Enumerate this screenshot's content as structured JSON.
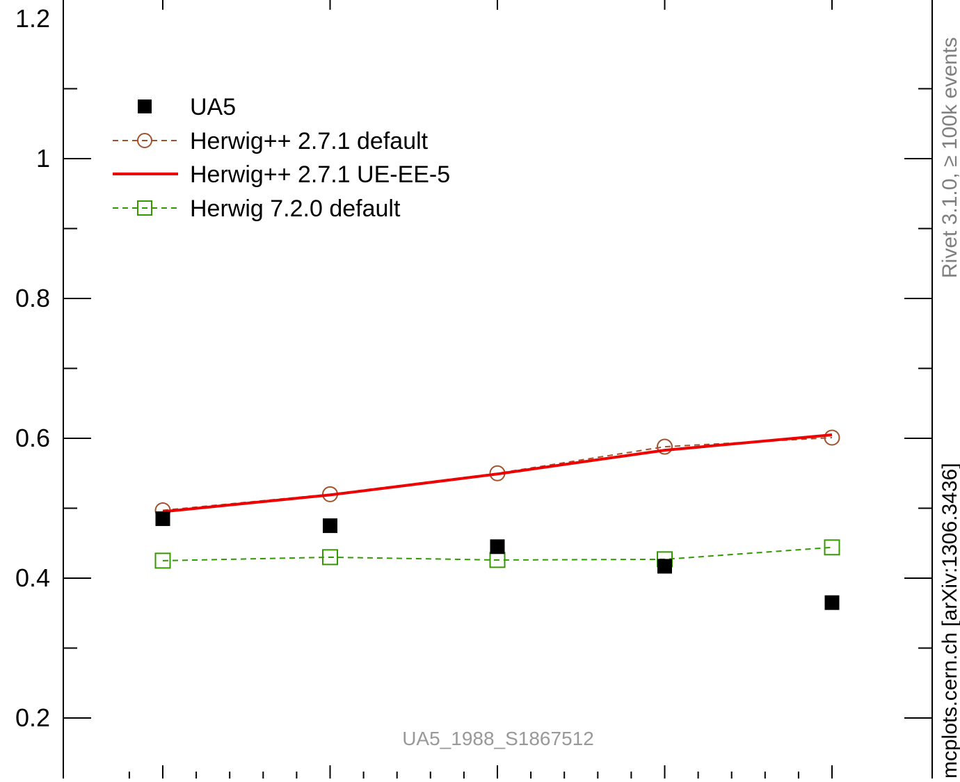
{
  "chart_data": {
    "type": "scatter",
    "title": "",
    "xlabel": "",
    "ylabel": "",
    "ylim": [
      0.1,
      1.22
    ],
    "y_ticks": [
      "0.2",
      "0.4",
      "0.6",
      "0.8",
      "1",
      "1.2"
    ],
    "series": [
      {
        "name": "UA5",
        "style": "markers",
        "marker": "filled-square",
        "color": "#000000",
        "x": [
          1,
          2,
          3,
          4,
          5
        ],
        "values": [
          0.485,
          0.475,
          0.445,
          0.417,
          0.365
        ]
      },
      {
        "name": "Herwig++ 2.7.1 default",
        "style": "dashed-line",
        "marker": "open-circle",
        "color": "#a0522d",
        "x": [
          1,
          2,
          3,
          4,
          5
        ],
        "values": [
          0.497,
          0.52,
          0.55,
          0.588,
          0.601
        ]
      },
      {
        "name": "Herwig++ 2.7.1 UE-EE-5",
        "style": "solid-line",
        "marker": "none",
        "color": "#ee0000",
        "x": [
          1,
          2,
          3,
          4,
          5
        ],
        "values": [
          0.495,
          0.519,
          0.549,
          0.583,
          0.605
        ]
      },
      {
        "name": "Herwig 7.2.0 default",
        "style": "dashed-line",
        "marker": "open-square",
        "color": "#339900",
        "x": [
          1,
          2,
          3,
          4,
          5
        ],
        "values": [
          0.425,
          0.43,
          0.426,
          0.427,
          0.444
        ]
      }
    ],
    "legend_position": "top-left",
    "annotation": "UA5_1988_S1867512",
    "side_label_top": "Rivet 3.1.0, ≥ 100k events",
    "side_label_bottom": "mcplots.cern.ch [arXiv:1306.3436]"
  }
}
